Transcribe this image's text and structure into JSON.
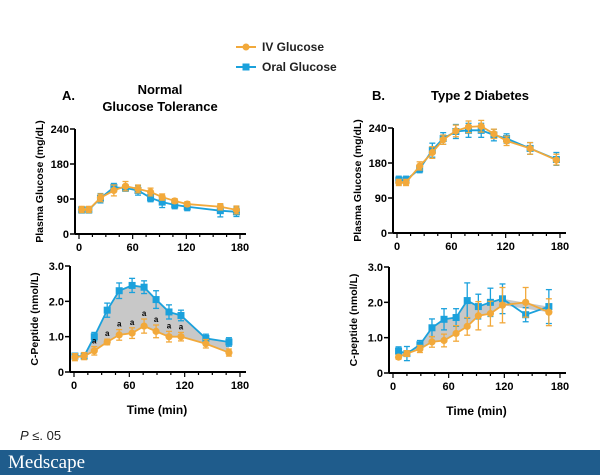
{
  "legend": {
    "series": [
      {
        "name": "IV Glucose",
        "color": "#f2a93b",
        "marker": "circle"
      },
      {
        "name": "Oral Glucose",
        "color": "#1ba1dc",
        "marker": "square"
      }
    ]
  },
  "footnote": {
    "p": "P",
    "rest": " ≤. 05"
  },
  "brand": {
    "logo": "Medscape",
    "bar_color": "#1f5c8c"
  },
  "chart_data": [
    {
      "id": "A-glucose",
      "type": "line",
      "panel_label": "A.",
      "title_line1": "Normal",
      "title_line2": "Glucose Tolerance",
      "ylabel": "Plasma Glucose  (mg/dL)",
      "xlabel": "",
      "xlim": [
        0,
        180
      ],
      "xticks": [
        0,
        60,
        120,
        180
      ],
      "yticks": [
        0,
        90,
        180,
        240
      ],
      "shade": false,
      "series": [
        {
          "name": "IV Glucose",
          "x": [
            3,
            11,
            24,
            39,
            52,
            66,
            80,
            93,
            107,
            121,
            158,
            176
          ],
          "y": [
            63,
            63,
            93,
            112,
            123,
            116,
            108,
            95,
            85,
            77,
            70,
            62
          ],
          "err": [
            8,
            8,
            10,
            14,
            12,
            10,
            10,
            8,
            6,
            6,
            8,
            10
          ]
        },
        {
          "name": "Oral Glucose",
          "x": [
            3,
            11,
            24,
            39,
            52,
            66,
            80,
            93,
            107,
            121,
            158,
            176
          ],
          "y": [
            62,
            62,
            92,
            120,
            118,
            112,
            93,
            82,
            75,
            70,
            60,
            57
          ],
          "err": [
            8,
            8,
            12,
            10,
            8,
            12,
            10,
            14,
            10,
            10,
            16,
            12
          ]
        }
      ]
    },
    {
      "id": "A-cpeptide",
      "type": "line",
      "ylabel": "C-Peptide (nmol/L)",
      "xlabel": "Time (min)",
      "xlim": [
        0,
        180
      ],
      "xticks": [
        0,
        60,
        120,
        180
      ],
      "yticks": [
        0,
        1.0,
        2.0,
        3.0
      ],
      "ytick_labels": [
        "0",
        "1.0",
        "2.0",
        "3.0"
      ],
      "shade": true,
      "annotation": "a",
      "annotated_points": [
        2,
        3,
        4,
        5,
        6,
        7,
        8,
        9
      ],
      "series": [
        {
          "name": "IV Glucose",
          "x": [
            1,
            11,
            22,
            36,
            49,
            63,
            76,
            89,
            103,
            116,
            143,
            168
          ],
          "y": [
            0.42,
            0.45,
            0.6,
            0.85,
            1.05,
            1.1,
            1.3,
            1.15,
            1.0,
            1.0,
            0.8,
            0.55
          ],
          "err": [
            0.1,
            0.1,
            0.12,
            0.08,
            0.15,
            0.15,
            0.2,
            0.18,
            0.15,
            0.12,
            0.12,
            0.1
          ]
        },
        {
          "name": "Oral Glucose",
          "x": [
            1,
            11,
            22,
            36,
            49,
            63,
            76,
            89,
            103,
            116,
            143,
            168
          ],
          "y": [
            0.45,
            0.45,
            1.0,
            1.75,
            2.3,
            2.45,
            2.4,
            2.05,
            1.7,
            1.6,
            0.95,
            0.85
          ],
          "err": [
            0.08,
            0.08,
            0.12,
            0.2,
            0.22,
            0.2,
            0.18,
            0.25,
            0.2,
            0.15,
            0.12,
            0.12
          ]
        }
      ]
    },
    {
      "id": "B-glucose",
      "type": "line",
      "panel_label": "B.",
      "title_line1": "Type 2 Diabetes",
      "ylabel": "Plasma Glucose (mg/dL)",
      "xlabel": "",
      "xlim": [
        0,
        180
      ],
      "xticks": [
        0,
        60,
        120,
        180
      ],
      "yticks": [
        0,
        90,
        180,
        240
      ],
      "shade": false,
      "series": [
        {
          "name": "IV Glucose",
          "x": [
            2,
            10,
            25,
            39,
            51,
            65,
            79,
            93,
            107,
            121,
            147,
            176
          ],
          "y": [
            130,
            130,
            172,
            198,
            220,
            235,
            242,
            243,
            230,
            218,
            205,
            185
          ],
          "err": [
            8,
            8,
            10,
            10,
            8,
            10,
            10,
            10,
            8,
            8,
            10,
            10
          ]
        },
        {
          "name": "Oral Glucose",
          "x": [
            2,
            10,
            25,
            39,
            51,
            65,
            79,
            93,
            107,
            121,
            147,
            176
          ],
          "y": [
            136,
            136,
            165,
            202,
            222,
            234,
            236,
            236,
            228,
            222,
            205,
            186
          ],
          "err": [
            10,
            10,
            10,
            12,
            10,
            12,
            12,
            12,
            10,
            8,
            10,
            12
          ]
        }
      ]
    },
    {
      "id": "B-cpeptide",
      "type": "line",
      "ylabel": "C-peptide (nmol/L)",
      "xlabel": "Time (min)",
      "xlim": [
        0,
        180
      ],
      "xticks": [
        0,
        60,
        120,
        180
      ],
      "yticks": [
        0,
        1.0,
        2.0,
        3.0
      ],
      "ytick_labels": [
        "0",
        "1.0",
        "2.0",
        "3.0"
      ],
      "shade": true,
      "series": [
        {
          "name": "IV Glucose",
          "x": [
            6,
            15,
            29,
            42,
            55,
            68,
            80,
            92,
            105,
            118,
            143,
            168
          ],
          "y": [
            0.45,
            0.55,
            0.68,
            0.88,
            0.92,
            1.12,
            1.32,
            1.62,
            1.68,
            1.92,
            2.0,
            1.72
          ],
          "err": [
            0.06,
            0.08,
            0.1,
            0.15,
            0.18,
            0.22,
            0.25,
            0.4,
            0.35,
            0.5,
            0.42,
            0.38
          ]
        },
        {
          "name": "Oral Glucose",
          "x": [
            6,
            15,
            29,
            42,
            55,
            68,
            80,
            92,
            105,
            118,
            143,
            168
          ],
          "y": [
            0.62,
            0.55,
            0.8,
            1.28,
            1.52,
            1.57,
            2.05,
            1.88,
            2.0,
            2.1,
            1.65,
            1.88
          ],
          "err": [
            0.12,
            0.2,
            0.12,
            0.25,
            0.3,
            0.25,
            0.5,
            0.35,
            0.4,
            0.42,
            0.2,
            0.48
          ]
        }
      ]
    }
  ]
}
